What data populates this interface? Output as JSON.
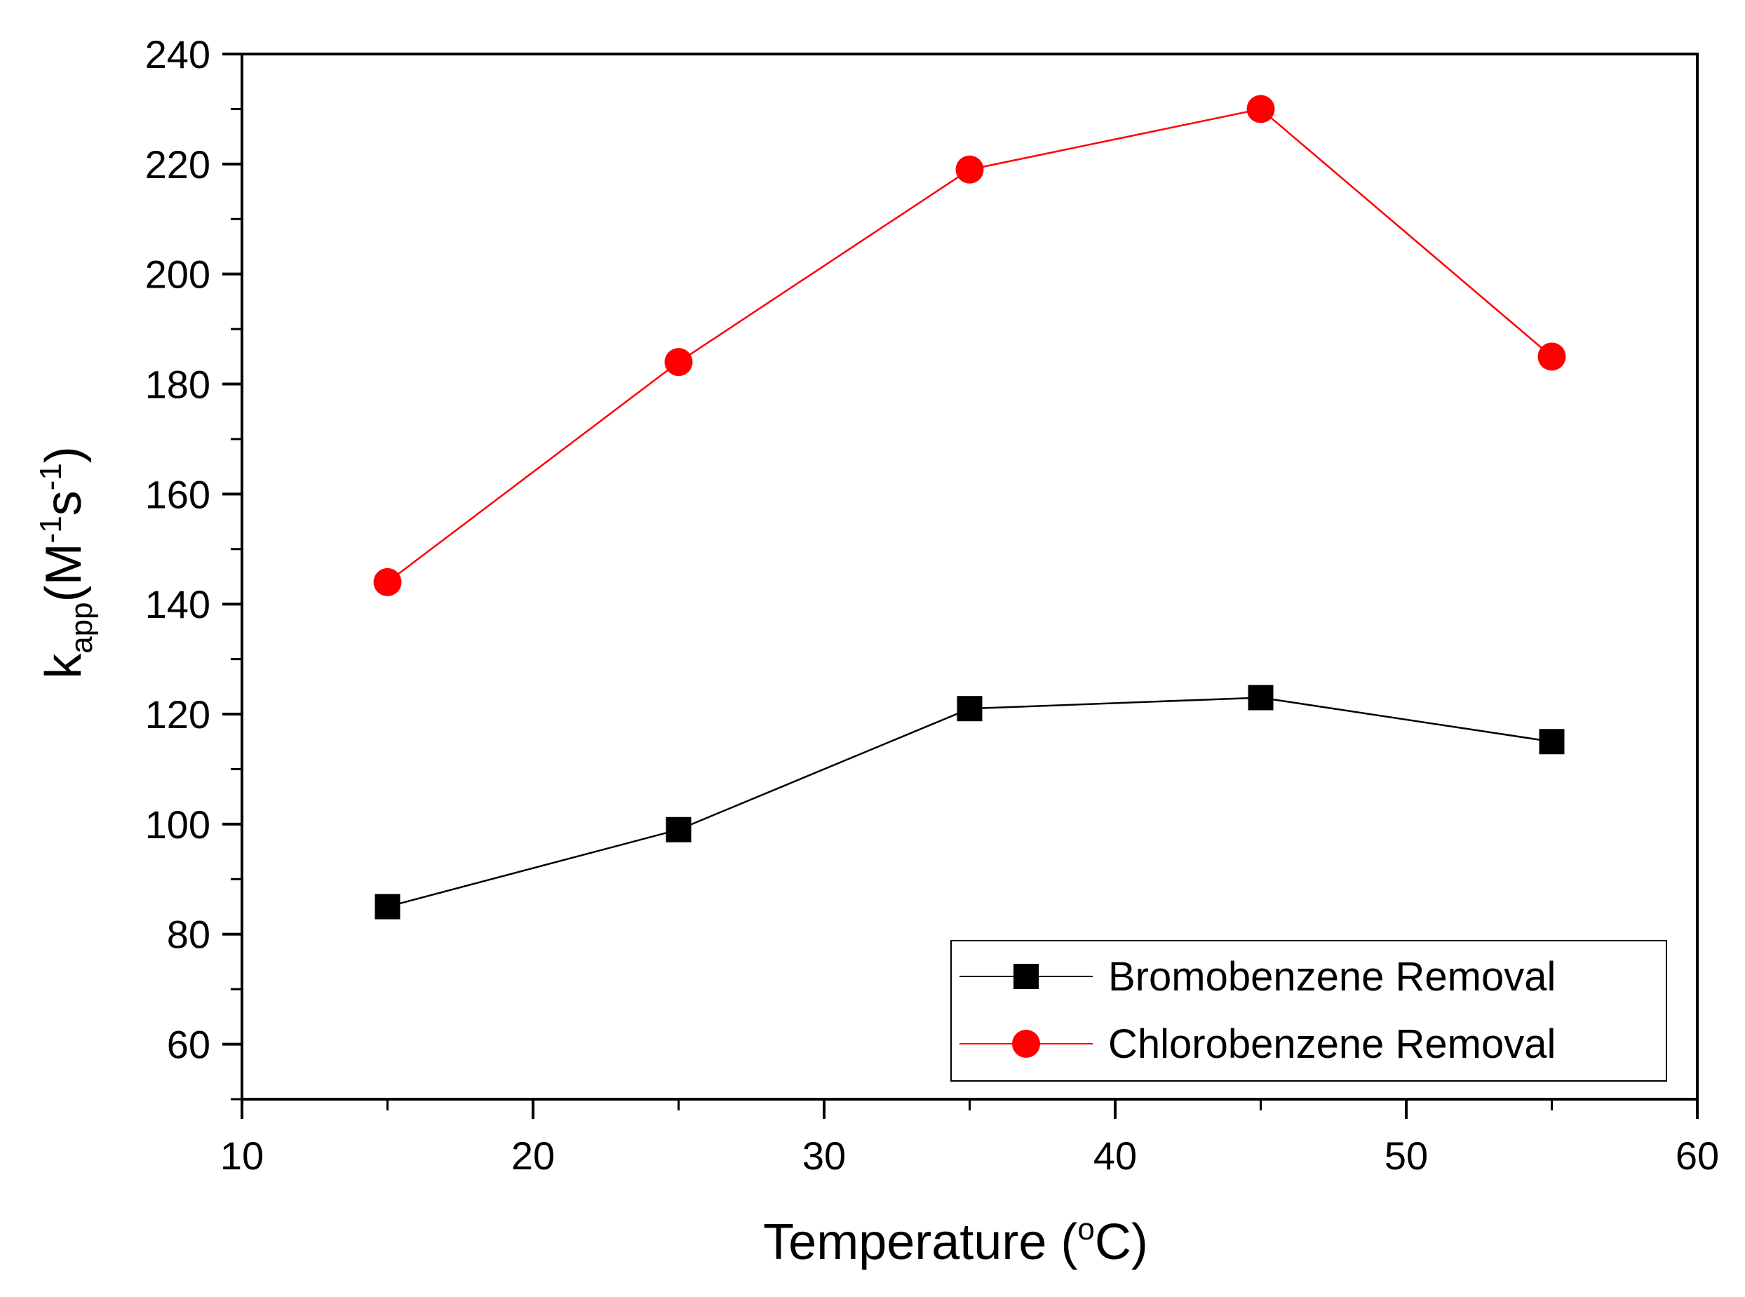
{
  "chart_data": {
    "type": "line",
    "title": "",
    "xlabel": {
      "main": "Temperature (",
      "sup": "o",
      "tail": "C)"
    },
    "ylabel": {
      "k": "k",
      "sub": "app",
      "open": "(M",
      "sup1": "-1",
      "s": "s",
      "sup2": "-1",
      "close": ")"
    },
    "xlim": [
      10,
      60
    ],
    "ylim": [
      50,
      240
    ],
    "x_ticks": [
      10,
      20,
      30,
      40,
      50,
      60
    ],
    "y_ticks": [
      60,
      80,
      100,
      120,
      140,
      160,
      180,
      200,
      220,
      240
    ],
    "x_tick_labels": [
      "10",
      "20",
      "30",
      "40",
      "50",
      "60"
    ],
    "y_tick_labels": [
      "60",
      "80",
      "100",
      "120",
      "140",
      "160",
      "180",
      "200",
      "220",
      "240"
    ],
    "x": [
      15,
      25,
      35,
      45,
      55
    ],
    "series": [
      {
        "name": "Bromobenzene Removal",
        "marker": "square",
        "color": "#000000",
        "values": [
          85,
          99,
          121,
          123,
          115
        ]
      },
      {
        "name": "Chlorobenzene Removal",
        "marker": "circle",
        "color": "#ff0000",
        "values": [
          144,
          184,
          219,
          230,
          185
        ]
      }
    ],
    "legend_position": "bottom-right",
    "grid": false
  }
}
